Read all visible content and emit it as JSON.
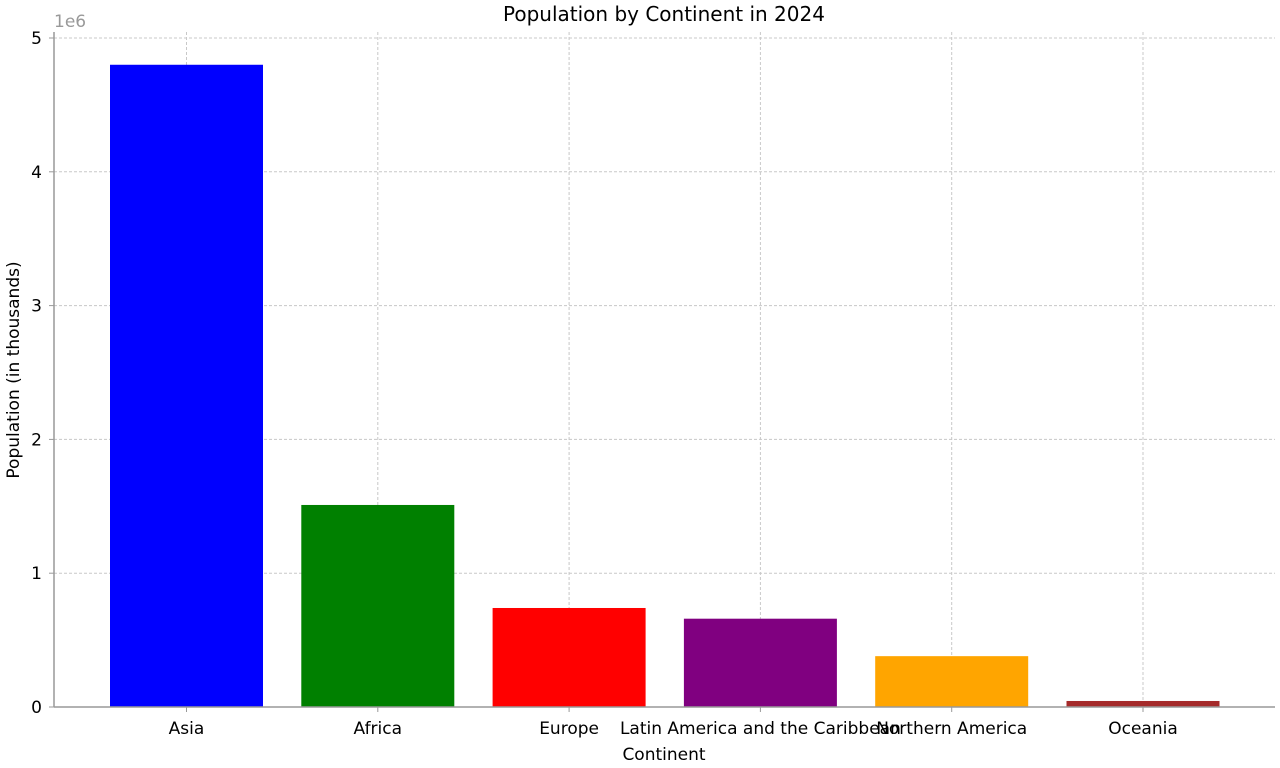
{
  "chart_data": {
    "type": "bar",
    "title": "Population by Continent in 2024",
    "xlabel": "Continent",
    "ylabel": "Population (in thousands)",
    "y_offset_label": "1e6",
    "ylim": [
      0,
      5000000
    ],
    "yticks": [
      0,
      1000000,
      2000000,
      3000000,
      4000000,
      5000000
    ],
    "ytick_labels": [
      "0",
      "1",
      "2",
      "3",
      "4",
      "5"
    ],
    "grid": true,
    "categories": [
      "Asia",
      "Africa",
      "Europe",
      "Latin America and the Caribbean",
      "Northern America",
      "Oceania"
    ],
    "values": [
      4800000,
      1510000,
      740000,
      660000,
      380000,
      45000
    ],
    "colors": [
      "#0000ff",
      "#008000",
      "#ff0000",
      "#800080",
      "#ffa500",
      "#a52a2a"
    ]
  }
}
